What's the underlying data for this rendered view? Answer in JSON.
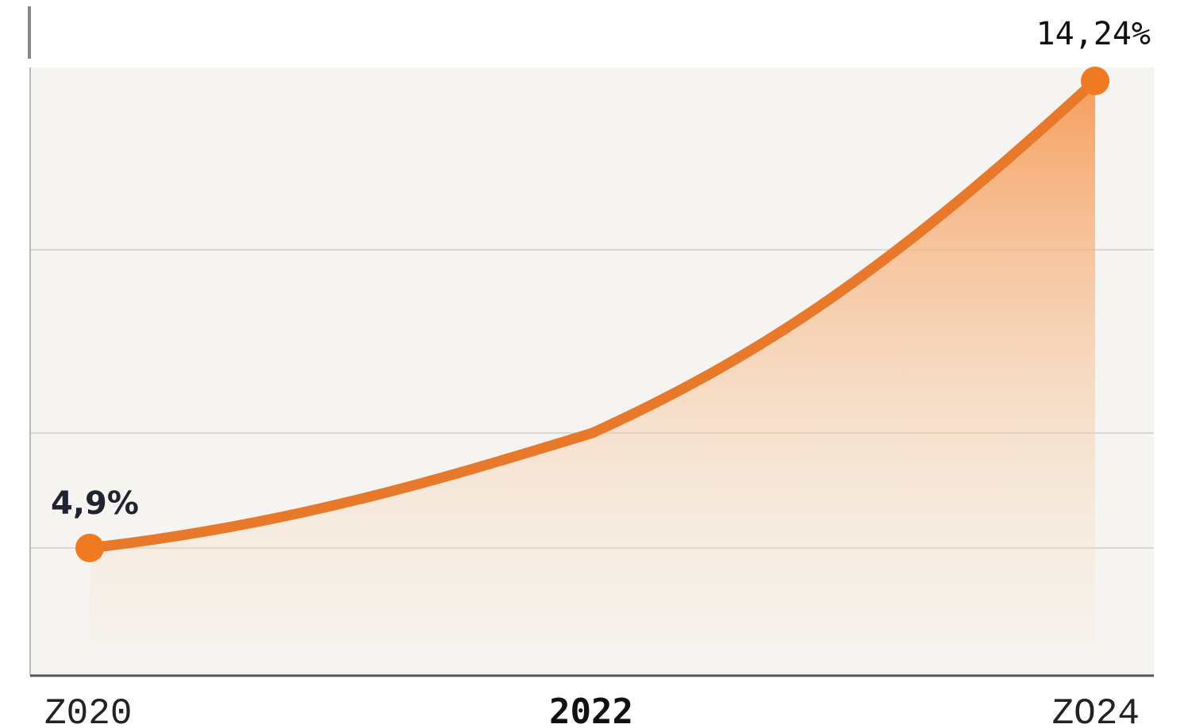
{
  "chart_data": {
    "type": "area",
    "x": [
      "2020",
      "2022",
      "2024"
    ],
    "tick_labels": [
      "Z020",
      "2022",
      "ZO24"
    ],
    "ylim": [
      0,
      15
    ],
    "grid": true,
    "series": [
      {
        "values": [
          4.9,
          7.2,
          14.24
        ],
        "labels": [
          "4,9%",
          "",
          "14,24%"
        ]
      }
    ],
    "colors": {
      "line": "#e8782a",
      "point": "#f07a22",
      "fill_top": "#f59a55",
      "fill_bottom": "#fbe6d4",
      "background": "#f5f4f0",
      "grid": "#d9d8d4",
      "axis": "#555555"
    }
  }
}
